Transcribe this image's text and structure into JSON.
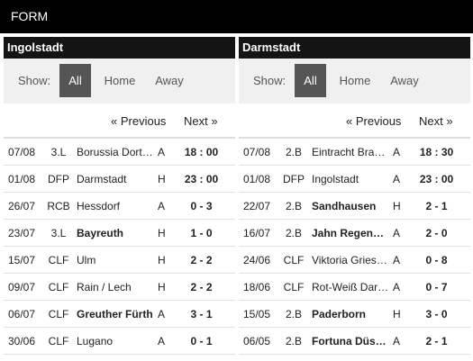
{
  "header": {
    "title": "FORM"
  },
  "filters": {
    "show_label": "Show:",
    "all": "All",
    "home": "Home",
    "away": "Away"
  },
  "pager": {
    "previous": "« Previous",
    "next": "Next »"
  },
  "panels": [
    {
      "team": "Ingolstadt",
      "matches": [
        {
          "date": "07/08",
          "comp": "3.L",
          "opponent": "Borussia Dortmund II",
          "venue": "A",
          "result": "18 : 00",
          "bold": false
        },
        {
          "date": "01/08",
          "comp": "DFP",
          "opponent": "Darmstadt",
          "venue": "H",
          "result": "23 : 00",
          "bold": false
        },
        {
          "date": "26/07",
          "comp": "RCB",
          "opponent": "Hessdorf",
          "venue": "A",
          "result": "0 - 3",
          "bold": false
        },
        {
          "date": "23/07",
          "comp": "3.L",
          "opponent": "Bayreuth",
          "venue": "H",
          "result": "1 - 0",
          "bold": true
        },
        {
          "date": "15/07",
          "comp": "CLF",
          "opponent": "Ulm",
          "venue": "H",
          "result": "2 - 2",
          "bold": false
        },
        {
          "date": "09/07",
          "comp": "CLF",
          "opponent": "Rain / Lech",
          "venue": "H",
          "result": "2 - 2",
          "bold": false
        },
        {
          "date": "06/07",
          "comp": "CLF",
          "opponent": "Greuther Fürth",
          "venue": "A",
          "result": "3 - 1",
          "bold": true
        },
        {
          "date": "30/06",
          "comp": "CLF",
          "opponent": "Lugano",
          "venue": "A",
          "result": "0 - 1",
          "bold": false
        }
      ]
    },
    {
      "team": "Darmstadt",
      "matches": [
        {
          "date": "07/08",
          "comp": "2.B",
          "opponent": "Eintracht Braunschweig",
          "venue": "A",
          "result": "18 : 30",
          "bold": false
        },
        {
          "date": "01/08",
          "comp": "DFP",
          "opponent": "Ingolstadt",
          "venue": "A",
          "result": "23 : 00",
          "bold": false
        },
        {
          "date": "22/07",
          "comp": "2.B",
          "opponent": "Sandhausen",
          "venue": "H",
          "result": "2 - 1",
          "bold": true
        },
        {
          "date": "16/07",
          "comp": "2.B",
          "opponent": "Jahn Regensburg",
          "venue": "A",
          "result": "2 - 0",
          "bold": true
        },
        {
          "date": "24/06",
          "comp": "CLF",
          "opponent": "Viktoria Griesheim",
          "venue": "A",
          "result": "0 - 8",
          "bold": false
        },
        {
          "date": "18/06",
          "comp": "CLF",
          "opponent": "Rot-Weiß Darmstadt",
          "venue": "A",
          "result": "0 - 7",
          "bold": false
        },
        {
          "date": "15/05",
          "comp": "2.B",
          "opponent": "Paderborn",
          "venue": "H",
          "result": "3 - 0",
          "bold": true
        },
        {
          "date": "06/05",
          "comp": "2.B",
          "opponent": "Fortuna Düsseldorf",
          "venue": "A",
          "result": "2 - 1",
          "bold": true
        }
      ]
    }
  ]
}
